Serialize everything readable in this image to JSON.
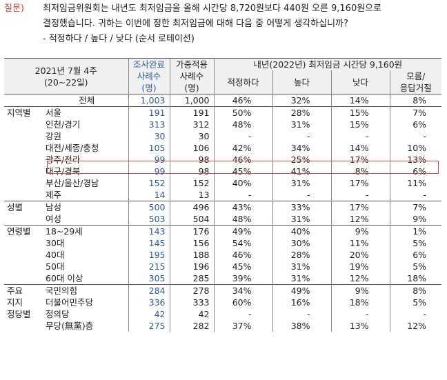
{
  "question": {
    "label": "질문)",
    "line1": "최저임금위원회는 내년도 최저임금을 올해 시간당 8,720원보다 440원 오른 9,160원으로",
    "line2": "결정했습니다. 귀하는 이번에 정한 최저임금에 대해 다음 중 어떻게 생각하십니까?",
    "line3": "- 적정하다 / 높다 / 낮다 (순서 로테이션)"
  },
  "header": {
    "date_line1": "2021년 7월 4주",
    "date_line2": "(20~22일)",
    "col_done_1": "조사완료",
    "col_done_2": "사례수",
    "col_done_3": "(명)",
    "col_weight_1": "가중적용",
    "col_weight_2": "사례수",
    "col_weight_3": "(명)",
    "group_title": "내년(2022년) 최저임금 시간당 9,160원",
    "c1": "적정하다",
    "c2": "높다",
    "c3": "낮다",
    "c4a": "모름/",
    "c4b": "응답거절"
  },
  "rows": [
    {
      "group": "",
      "label": "전체",
      "done": "1,003",
      "weighted": "1,000",
      "v1": "46%",
      "v2": "32%",
      "v3": "14%",
      "v4": "8%"
    },
    {
      "group": "지역별",
      "label": "서울",
      "done": "191",
      "weighted": "191",
      "v1": "50%",
      "v2": "28%",
      "v3": "15%",
      "v4": "7%"
    },
    {
      "group": "",
      "label": "인천/경기",
      "done": "313",
      "weighted": "312",
      "v1": "48%",
      "v2": "31%",
      "v3": "15%",
      "v4": "6%"
    },
    {
      "group": "",
      "label": "강원",
      "done": "30",
      "weighted": "30",
      "v1": "-",
      "v2": "-",
      "v3": "-",
      "v4": "-"
    },
    {
      "group": "",
      "label": "대전/세종/충청",
      "done": "105",
      "weighted": "106",
      "v1": "42%",
      "v2": "34%",
      "v3": "14%",
      "v4": "10%"
    },
    {
      "group": "",
      "label": "광주/전라",
      "done": "99",
      "weighted": "98",
      "v1": "46%",
      "v2": "25%",
      "v3": "17%",
      "v4": "13%"
    },
    {
      "group": "",
      "label": "대구/경북",
      "done": "99",
      "weighted": "98",
      "v1": "45%",
      "v2": "41%",
      "v3": "8%",
      "v4": "6%"
    },
    {
      "group": "",
      "label": "부산/울산/경남",
      "done": "152",
      "weighted": "152",
      "v1": "40%",
      "v2": "31%",
      "v3": "17%",
      "v4": "11%"
    },
    {
      "group": "",
      "label": "제주",
      "done": "14",
      "weighted": "13",
      "v1": "-",
      "v2": "-",
      "v3": "-",
      "v4": "-"
    },
    {
      "group": "성별",
      "label": "남성",
      "done": "500",
      "weighted": "496",
      "v1": "43%",
      "v2": "33%",
      "v3": "17%",
      "v4": "7%"
    },
    {
      "group": "",
      "label": "여성",
      "done": "503",
      "weighted": "504",
      "v1": "48%",
      "v2": "31%",
      "v3": "12%",
      "v4": "9%"
    },
    {
      "group": "연령별",
      "label": "18~29세",
      "done": "143",
      "weighted": "176",
      "v1": "49%",
      "v2": "40%",
      "v3": "9%",
      "v4": "1%"
    },
    {
      "group": "",
      "label": "30대",
      "done": "145",
      "weighted": "156",
      "v1": "54%",
      "v2": "30%",
      "v3": "11%",
      "v4": "5%"
    },
    {
      "group": "",
      "label": "40대",
      "done": "195",
      "weighted": "188",
      "v1": "46%",
      "v2": "28%",
      "v3": "20%",
      "v4": "6%"
    },
    {
      "group": "",
      "label": "50대",
      "done": "215",
      "weighted": "196",
      "v1": "45%",
      "v2": "31%",
      "v3": "19%",
      "v4": "5%"
    },
    {
      "group": "",
      "label": "60대 이상",
      "done": "305",
      "weighted": "285",
      "v1": "39%",
      "v2": "31%",
      "v3": "12%",
      "v4": "18%"
    },
    {
      "group": "주요",
      "label": "국민의힘",
      "done": "284",
      "weighted": "278",
      "v1": "34%",
      "v2": "49%",
      "v3": "9%",
      "v4": "8%"
    },
    {
      "group": "지지",
      "label": "더불어민주당",
      "done": "336",
      "weighted": "333",
      "v1": "60%",
      "v2": "16%",
      "v3": "18%",
      "v4": "5%"
    },
    {
      "group": "정당별",
      "label": "정의당",
      "done": "42",
      "weighted": "42",
      "v1": "-",
      "v2": "-",
      "v3": "-",
      "v4": "-"
    },
    {
      "group": "",
      "label": "무당(無黨)층",
      "done": "275",
      "weighted": "282",
      "v1": "37%",
      "v2": "38%",
      "v3": "13%",
      "v4": "12%"
    }
  ]
}
